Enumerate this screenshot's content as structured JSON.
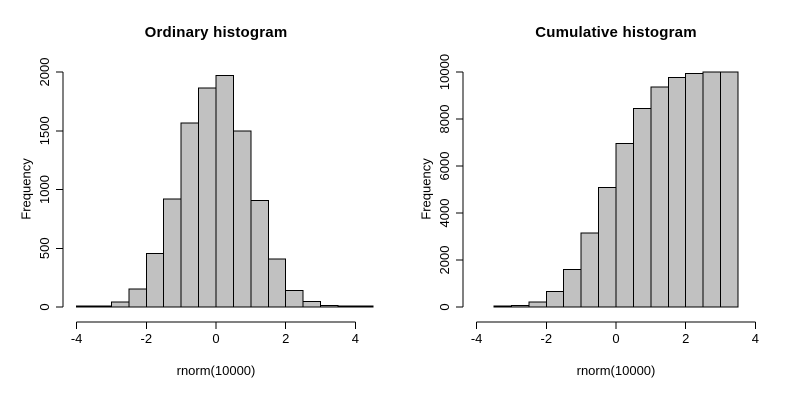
{
  "figure": {
    "background": "#ffffff",
    "bar_fill": "#c1c1c1",
    "bar_border": "#000000",
    "text_color": "#000000"
  },
  "chart_data": [
    {
      "type": "bar",
      "subtype": "histogram",
      "title": "Ordinary histogram",
      "xlabel": "rnorm(10000)",
      "ylabel": "Frequency",
      "bin_width": 0.5,
      "breaks": [
        -4,
        -3.5,
        -3,
        -2.5,
        -2,
        -1.5,
        -1,
        -0.5,
        0,
        0.5,
        1,
        1.5,
        2,
        2.5,
        3,
        3.5,
        4,
        4.5
      ],
      "counts": [
        2,
        10,
        42,
        155,
        455,
        920,
        1565,
        1862,
        1970,
        1500,
        905,
        410,
        141,
        47,
        12,
        3,
        1
      ],
      "x_ticks": [
        -4,
        -2,
        0,
        2,
        4
      ],
      "y_ticks": [
        0,
        500,
        1000,
        1500,
        2000
      ],
      "xlim": [
        -4.3,
        4.8
      ],
      "ylim": [
        0,
        2000
      ],
      "grid": false,
      "legend": "none"
    },
    {
      "type": "bar",
      "subtype": "cumulative-histogram",
      "title": "Cumulative histogram",
      "xlabel": "rnorm(10000)",
      "ylabel": "Frequency",
      "bin_width": 0.5,
      "breaks": [
        -3.5,
        -3,
        -2.5,
        -2,
        -1.5,
        -1,
        -0.5,
        0,
        0.5,
        1,
        1.5,
        2,
        2.5,
        3,
        3.5
      ],
      "counts": [
        15,
        60,
        220,
        670,
        1590,
        3140,
        5090,
        6950,
        8450,
        9370,
        9770,
        9930,
        9990,
        10000
      ],
      "x_ticks": [
        -4,
        -2,
        0,
        2,
        4
      ],
      "y_ticks": [
        0,
        2000,
        4000,
        6000,
        8000,
        10000
      ],
      "xlim": [
        -4.3,
        4.8
      ],
      "ylim": [
        0,
        10000
      ],
      "grid": false,
      "legend": "none"
    }
  ]
}
